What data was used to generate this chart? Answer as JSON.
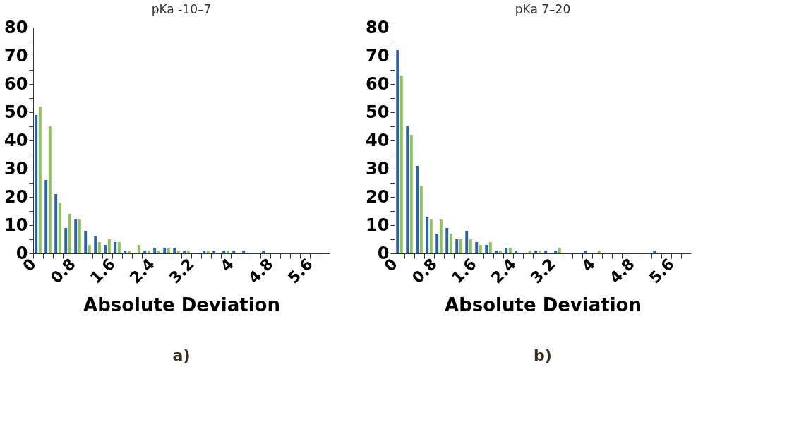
{
  "chart_data": [
    {
      "type": "histogram",
      "title": "pKa -10–7",
      "xlabel": "Absolute Deviation",
      "annotations": [
        "a)"
      ],
      "bins": [
        0,
        0.2,
        0.4,
        0.6,
        0.8,
        1,
        1.2,
        1.4,
        1.6,
        1.8,
        2,
        2.2,
        2.4,
        2.6,
        2.8,
        3,
        3.2,
        3.4,
        3.6,
        3.8,
        4,
        4.2,
        4.4,
        4.6,
        4.8,
        5,
        5.2,
        5.4,
        5.6,
        5.8,
        6
      ],
      "series": [
        {
          "color": "#2e62a8",
          "values": [
            49,
            26,
            21,
            9,
            12,
            8,
            6,
            3,
            4,
            1,
            0,
            1,
            2,
            2,
            2,
            1,
            0,
            1,
            1,
            1,
            1,
            1,
            0,
            1,
            0,
            0,
            0,
            0,
            0,
            0
          ]
        },
        {
          "color": "#8dc15a",
          "values": [
            52,
            45,
            18,
            14,
            12,
            3,
            4,
            5,
            4,
            1,
            3,
            1,
            1,
            2,
            1,
            1,
            0,
            1,
            0,
            1,
            0,
            0,
            0,
            0,
            0,
            0,
            0,
            0,
            0,
            0
          ]
        }
      ],
      "xlim": [
        0,
        6
      ],
      "xticks": [
        0,
        {
          "value": 0.2,
          "label": null
        },
        {
          "value": 0.4,
          "label": null
        },
        {
          "value": 0.6,
          "label": null
        },
        0.8,
        {
          "value": 1,
          "label": null
        },
        {
          "value": 1.2,
          "label": null
        },
        {
          "value": 1.4,
          "label": null
        },
        1.6,
        {
          "value": 1.8,
          "label": null
        },
        {
          "value": 2,
          "label": null
        },
        {
          "value": 2.2,
          "label": null
        },
        2.4,
        {
          "value": 2.6,
          "label": null
        },
        {
          "value": 2.8,
          "label": null
        },
        {
          "value": 3,
          "label": null
        },
        3.2,
        {
          "value": 3.4,
          "label": null
        },
        {
          "value": 3.6,
          "label": null
        },
        {
          "value": 3.8,
          "label": null
        },
        4,
        {
          "value": 4.2,
          "label": null
        },
        {
          "value": 4.4,
          "label": null
        },
        {
          "value": 4.6,
          "label": null
        },
        4.8,
        {
          "value": 5,
          "label": null
        },
        {
          "value": 5.2,
          "label": null
        },
        {
          "value": 5.4,
          "label": null
        },
        5.6,
        {
          "value": 5.8,
          "label": null
        }
      ],
      "ylim": [
        0,
        80
      ],
      "yticks": [
        0,
        {
          "value": 5,
          "label": null
        },
        10,
        {
          "value": 15,
          "label": null
        },
        20,
        {
          "value": 25,
          "label": null
        },
        30,
        {
          "value": 35,
          "label": null
        },
        40,
        {
          "value": 45,
          "label": null
        },
        50,
        {
          "value": 55,
          "label": null
        },
        60,
        {
          "value": 65,
          "label": null
        },
        70,
        {
          "value": 75,
          "label": null
        },
        80
      ],
      "grid": false,
      "legend": false
    },
    {
      "type": "histogram",
      "title": "pKa 7–20",
      "xlabel": "Absolute Deviation",
      "annotations": [
        "b)"
      ],
      "bins": [
        0,
        0.2,
        0.4,
        0.6,
        0.8,
        1,
        1.2,
        1.4,
        1.6,
        1.8,
        2,
        2.2,
        2.4,
        2.6,
        2.8,
        3,
        3.2,
        3.4,
        3.6,
        3.8,
        4,
        4.2,
        4.4,
        4.6,
        4.8,
        5,
        5.2,
        5.4,
        5.6,
        5.8,
        6
      ],
      "series": [
        {
          "color": "#2e62a8",
          "values": [
            72,
            45,
            31,
            13,
            7,
            9,
            5,
            8,
            4,
            3,
            1,
            2,
            1,
            0,
            1,
            1,
            1,
            0,
            0,
            1,
            0,
            0,
            0,
            0,
            0,
            0,
            1,
            0,
            0,
            0
          ]
        },
        {
          "color": "#8dc15a",
          "values": [
            63,
            42,
            24,
            12,
            12,
            7,
            5,
            5,
            3,
            4,
            1,
            2,
            0,
            1,
            1,
            0,
            2,
            0,
            0,
            0,
            1,
            0,
            0,
            0,
            0,
            0,
            0,
            0,
            0,
            0
          ]
        }
      ],
      "xlim": [
        0,
        6
      ],
      "xticks": [
        0,
        {
          "value": 0.2,
          "label": null
        },
        {
          "value": 0.4,
          "label": null
        },
        {
          "value": 0.6,
          "label": null
        },
        0.8,
        {
          "value": 1,
          "label": null
        },
        {
          "value": 1.2,
          "label": null
        },
        {
          "value": 1.4,
          "label": null
        },
        1.6,
        {
          "value": 1.8,
          "label": null
        },
        {
          "value": 2,
          "label": null
        },
        {
          "value": 2.2,
          "label": null
        },
        2.4,
        {
          "value": 2.6,
          "label": null
        },
        {
          "value": 2.8,
          "label": null
        },
        {
          "value": 3,
          "label": null
        },
        3.2,
        {
          "value": 3.4,
          "label": null
        },
        {
          "value": 3.6,
          "label": null
        },
        {
          "value": 3.8,
          "label": null
        },
        4,
        {
          "value": 4.2,
          "label": null
        },
        {
          "value": 4.4,
          "label": null
        },
        {
          "value": 4.6,
          "label": null
        },
        4.8,
        {
          "value": 5,
          "label": null
        },
        {
          "value": 5.2,
          "label": null
        },
        {
          "value": 5.4,
          "label": null
        },
        5.6,
        {
          "value": 5.8,
          "label": null
        }
      ],
      "ylim": [
        0,
        80
      ],
      "yticks": [
        0,
        {
          "value": 5,
          "label": null
        },
        10,
        {
          "value": 15,
          "label": null
        },
        20,
        {
          "value": 25,
          "label": null
        },
        30,
        {
          "value": 35,
          "label": null
        },
        40,
        {
          "value": 45,
          "label": null
        },
        50,
        {
          "value": 55,
          "label": null
        },
        60,
        {
          "value": 65,
          "label": null
        },
        70,
        {
          "value": 75,
          "label": null
        },
        80
      ],
      "grid": false,
      "legend": false
    }
  ]
}
